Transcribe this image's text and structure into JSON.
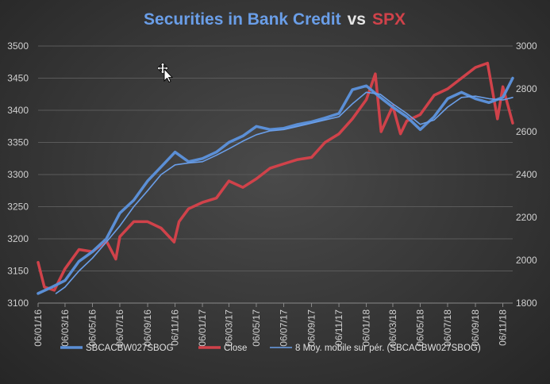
{
  "colors": {
    "blue": "#5b8fd6",
    "red": "#d0424a",
    "ma": "#6a9ee8",
    "title_vs": "#e6e6e6",
    "grid": "#5a5a5a",
    "tick": "#d0d0d0"
  },
  "icons": {
    "cursor": "move-cursor-icon"
  },
  "chart_data": {
    "type": "line",
    "title": {
      "part1": "Securities in Bank Credit",
      "part2": "vs",
      "part3": "SPX"
    },
    "y_left": {
      "min": 3100,
      "max": 3500,
      "step": 50,
      "ticks": [
        "3100",
        "3150",
        "3200",
        "3250",
        "3300",
        "3350",
        "3400",
        "3450",
        "3500"
      ]
    },
    "y_right": {
      "min": 1800,
      "max": 3000,
      "step": 200,
      "ticks": [
        "1800",
        "2000",
        "2200",
        "2400",
        "2600",
        "2800",
        "3000"
      ]
    },
    "x_ticks": [
      {
        "date": "2016-01-06",
        "label": "06/01/16"
      },
      {
        "date": "2016-03-06",
        "label": "06/03/16"
      },
      {
        "date": "2016-05-06",
        "label": "06/05/16"
      },
      {
        "date": "2016-07-06",
        "label": "06/07/16"
      },
      {
        "date": "2016-09-06",
        "label": "06/09/16"
      },
      {
        "date": "2016-11-06",
        "label": "06/11/16"
      },
      {
        "date": "2017-01-06",
        "label": "06/01/17"
      },
      {
        "date": "2017-03-06",
        "label": "06/03/17"
      },
      {
        "date": "2017-05-06",
        "label": "06/05/17"
      },
      {
        "date": "2017-07-06",
        "label": "06/07/17"
      },
      {
        "date": "2017-09-06",
        "label": "06/09/17"
      },
      {
        "date": "2017-11-06",
        "label": "06/11/17"
      },
      {
        "date": "2018-01-06",
        "label": "06/01/18"
      },
      {
        "date": "2018-03-06",
        "label": "06/03/18"
      },
      {
        "date": "2018-05-06",
        "label": "06/05/18"
      },
      {
        "date": "2018-07-06",
        "label": "06/07/18"
      },
      {
        "date": "2018-09-06",
        "label": "06/09/18"
      },
      {
        "date": "2018-11-06",
        "label": "06/11/18"
      }
    ],
    "x_range": [
      "2016-01-06",
      "2018-11-28"
    ],
    "legend_position": "bottom",
    "grid": true,
    "series": [
      {
        "name": "SBCACBW027SBOG",
        "axis": "left",
        "color_key": "blue",
        "points": [
          [
            "2016-01-06",
            3115
          ],
          [
            "2016-02-06",
            3125
          ],
          [
            "2016-03-06",
            3135
          ],
          [
            "2016-04-06",
            3165
          ],
          [
            "2016-05-06",
            3180
          ],
          [
            "2016-06-06",
            3200
          ],
          [
            "2016-07-06",
            3240
          ],
          [
            "2016-08-06",
            3260
          ],
          [
            "2016-09-06",
            3290
          ],
          [
            "2016-10-06",
            3312
          ],
          [
            "2016-11-06",
            3335
          ],
          [
            "2016-12-06",
            3320
          ],
          [
            "2017-01-06",
            3325
          ],
          [
            "2017-02-06",
            3335
          ],
          [
            "2017-03-06",
            3350
          ],
          [
            "2017-04-06",
            3360
          ],
          [
            "2017-05-06",
            3375
          ],
          [
            "2017-06-06",
            3370
          ],
          [
            "2017-07-06",
            3372
          ],
          [
            "2017-08-06",
            3378
          ],
          [
            "2017-09-06",
            3382
          ],
          [
            "2017-10-06",
            3388
          ],
          [
            "2017-11-06",
            3395
          ],
          [
            "2017-12-06",
            3432
          ],
          [
            "2018-01-06",
            3438
          ],
          [
            "2018-02-06",
            3420
          ],
          [
            "2018-03-06",
            3405
          ],
          [
            "2018-04-06",
            3390
          ],
          [
            "2018-05-06",
            3370
          ],
          [
            "2018-06-06",
            3390
          ],
          [
            "2018-07-06",
            3418
          ],
          [
            "2018-08-06",
            3428
          ],
          [
            "2018-09-06",
            3418
          ],
          [
            "2018-10-06",
            3412
          ],
          [
            "2018-11-06",
            3420
          ],
          [
            "2018-11-28",
            3450
          ]
        ]
      },
      {
        "name": "Close",
        "axis": "right",
        "color_key": "red",
        "points": [
          [
            "2016-01-06",
            1990
          ],
          [
            "2016-01-20",
            1875
          ],
          [
            "2016-02-11",
            1860
          ],
          [
            "2016-03-06",
            1960
          ],
          [
            "2016-04-06",
            2050
          ],
          [
            "2016-05-06",
            2040
          ],
          [
            "2016-06-06",
            2090
          ],
          [
            "2016-06-27",
            2005
          ],
          [
            "2016-07-06",
            2110
          ],
          [
            "2016-08-06",
            2180
          ],
          [
            "2016-09-06",
            2180
          ],
          [
            "2016-10-06",
            2150
          ],
          [
            "2016-11-04",
            2085
          ],
          [
            "2016-11-15",
            2180
          ],
          [
            "2016-12-06",
            2240
          ],
          [
            "2017-01-06",
            2270
          ],
          [
            "2017-02-06",
            2290
          ],
          [
            "2017-03-06",
            2370
          ],
          [
            "2017-04-06",
            2340
          ],
          [
            "2017-05-06",
            2380
          ],
          [
            "2017-06-06",
            2430
          ],
          [
            "2017-07-06",
            2450
          ],
          [
            "2017-08-06",
            2470
          ],
          [
            "2017-09-06",
            2480
          ],
          [
            "2017-10-06",
            2550
          ],
          [
            "2017-11-06",
            2590
          ],
          [
            "2017-12-06",
            2660
          ],
          [
            "2018-01-06",
            2750
          ],
          [
            "2018-01-26",
            2870
          ],
          [
            "2018-02-08",
            2600
          ],
          [
            "2018-03-06",
            2720
          ],
          [
            "2018-03-23",
            2590
          ],
          [
            "2018-04-06",
            2650
          ],
          [
            "2018-05-06",
            2680
          ],
          [
            "2018-06-06",
            2770
          ],
          [
            "2018-07-06",
            2800
          ],
          [
            "2018-08-06",
            2850
          ],
          [
            "2018-09-06",
            2900
          ],
          [
            "2018-10-03",
            2920
          ],
          [
            "2018-10-25",
            2660
          ],
          [
            "2018-11-06",
            2810
          ],
          [
            "2018-11-28",
            2640
          ]
        ]
      },
      {
        "name": "8 Moy. mobile sur pér. (SBCACBW027SBOG)",
        "axis": "left",
        "color_key": "ma",
        "points": [
          [
            "2016-02-15",
            3115
          ],
          [
            "2016-03-06",
            3125
          ],
          [
            "2016-04-06",
            3150
          ],
          [
            "2016-05-06",
            3170
          ],
          [
            "2016-06-06",
            3195
          ],
          [
            "2016-07-06",
            3220
          ],
          [
            "2016-08-06",
            3250
          ],
          [
            "2016-09-06",
            3275
          ],
          [
            "2016-10-06",
            3300
          ],
          [
            "2016-11-06",
            3315
          ],
          [
            "2016-12-06",
            3318
          ],
          [
            "2017-01-06",
            3320
          ],
          [
            "2017-02-06",
            3330
          ],
          [
            "2017-03-06",
            3340
          ],
          [
            "2017-04-06",
            3352
          ],
          [
            "2017-05-06",
            3362
          ],
          [
            "2017-06-06",
            3368
          ],
          [
            "2017-07-06",
            3370
          ],
          [
            "2017-08-06",
            3375
          ],
          [
            "2017-09-06",
            3380
          ],
          [
            "2017-10-06",
            3385
          ],
          [
            "2017-11-06",
            3390
          ],
          [
            "2017-12-06",
            3410
          ],
          [
            "2018-01-06",
            3428
          ],
          [
            "2018-02-06",
            3425
          ],
          [
            "2018-03-06",
            3410
          ],
          [
            "2018-04-06",
            3395
          ],
          [
            "2018-05-06",
            3378
          ],
          [
            "2018-06-06",
            3385
          ],
          [
            "2018-07-06",
            3405
          ],
          [
            "2018-08-06",
            3420
          ],
          [
            "2018-09-06",
            3422
          ],
          [
            "2018-10-06",
            3418
          ],
          [
            "2018-11-06",
            3416
          ],
          [
            "2018-11-28",
            3420
          ]
        ]
      }
    ]
  }
}
